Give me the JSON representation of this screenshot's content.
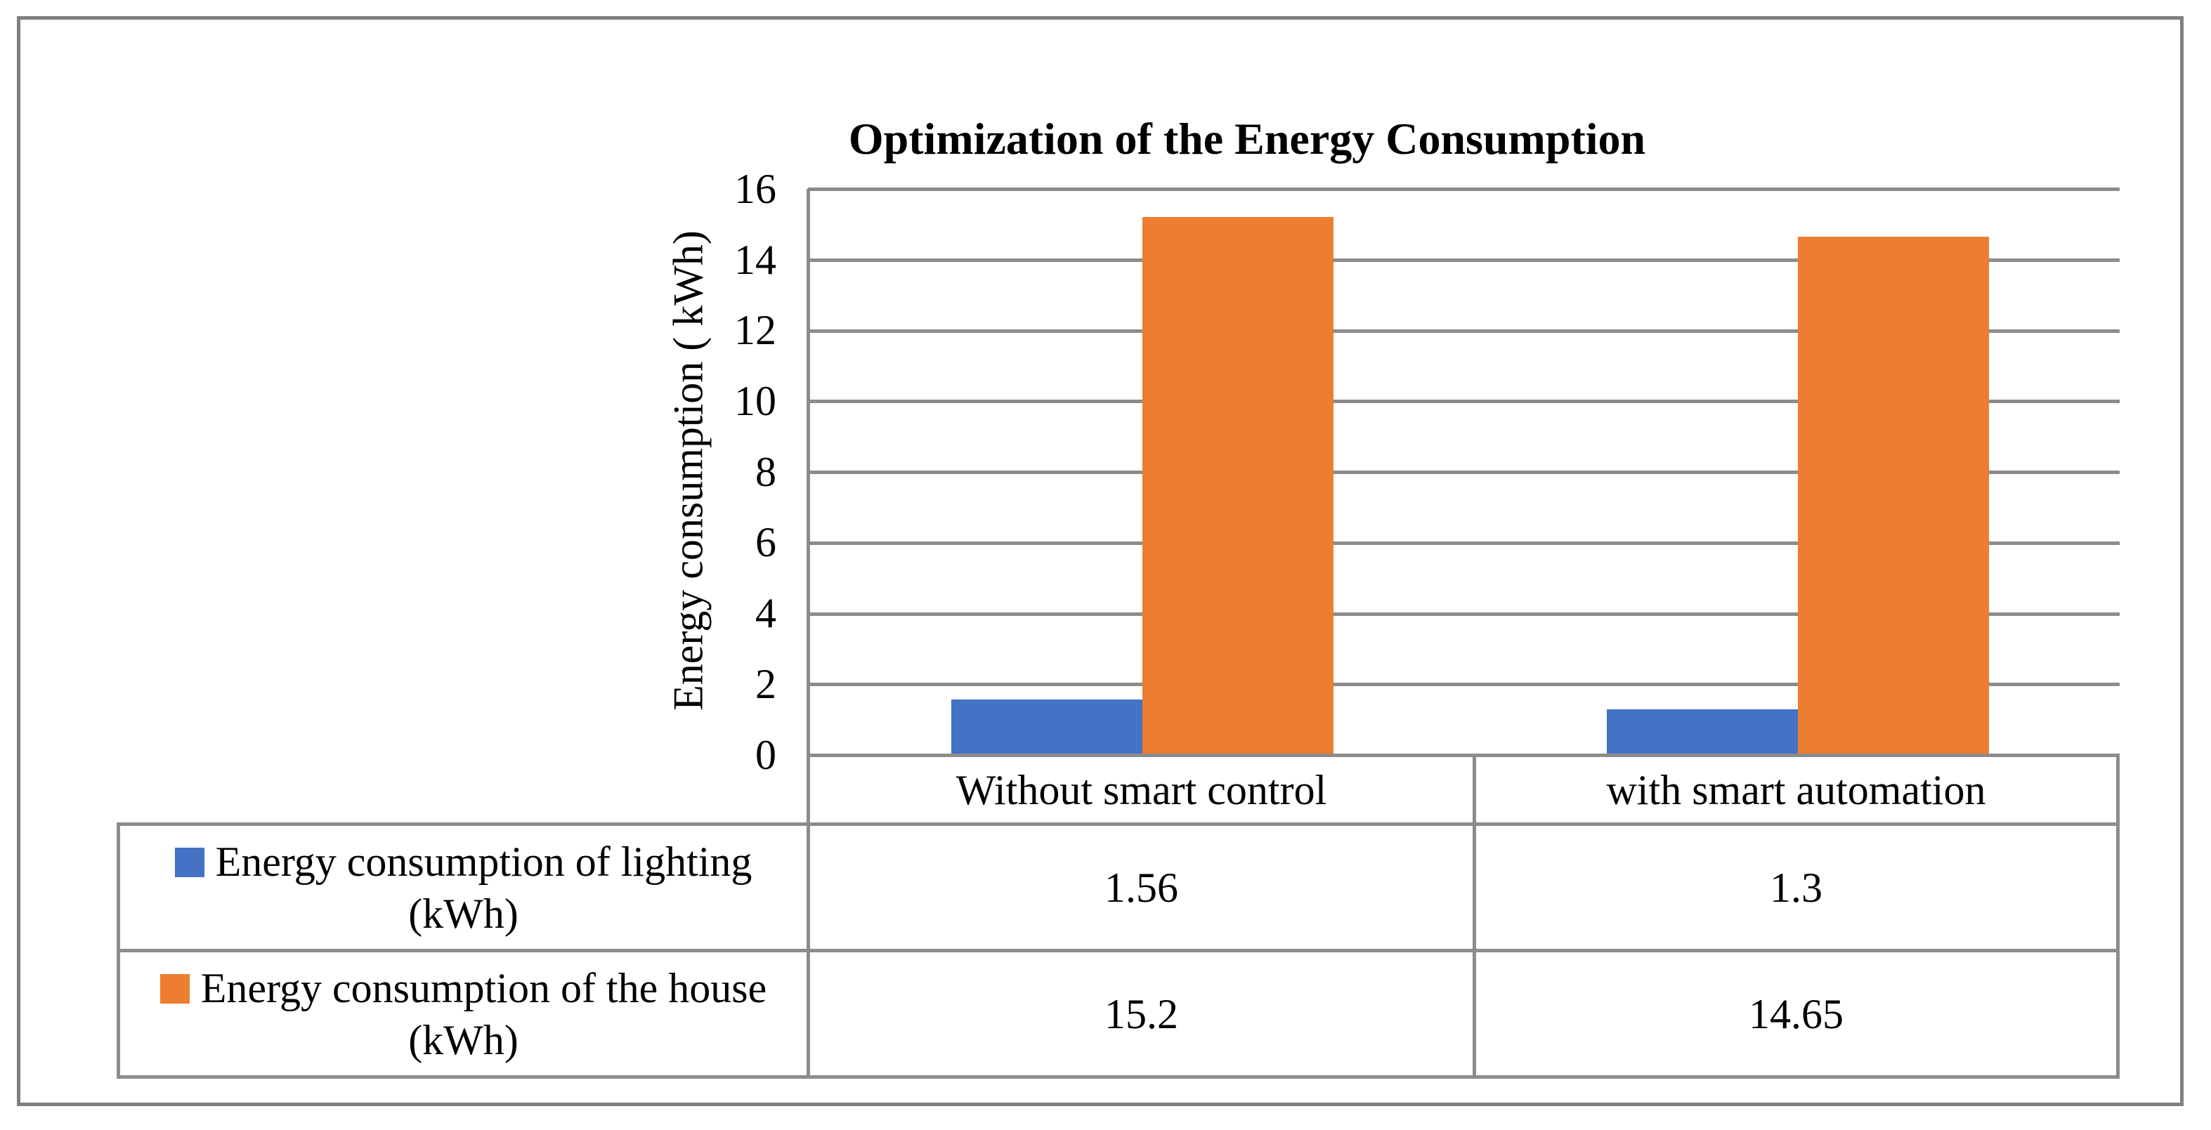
{
  "chart_data": {
    "type": "bar",
    "title": "Optimization of the Energy Consumption",
    "ylabel": "Energy consumption ( kWh)",
    "xlabel": "",
    "ylim": [
      0,
      16
    ],
    "ytick_step": 2,
    "yticks": [
      16,
      14,
      12,
      10,
      8,
      6,
      4,
      2,
      0
    ],
    "grid": true,
    "legend_position": "left-of-data-table",
    "data_table_shown": true,
    "categories": [
      "Without smart control",
      "with smart automation"
    ],
    "series": [
      {
        "name": "Energy consumption of lighting (kWh)",
        "label_line1": "Energy consumption of lighting",
        "label_line2": "(kWh)",
        "color": "#4472C4",
        "values": [
          1.56,
          1.3
        ],
        "values_text": [
          "1.56",
          "1.3"
        ]
      },
      {
        "name": "Energy consumption of the house (kWh)",
        "label_line1": "Energy consumption of the house",
        "label_line2": "(kWh)",
        "color": "#ED7D31",
        "values": [
          15.2,
          14.65
        ],
        "values_text": [
          "15.2",
          "14.65"
        ]
      }
    ],
    "colors": {
      "grid_line": "#8C8C8C",
      "figure_border": "#7F7F7F",
      "text": "#000000",
      "background": "#FFFFFF"
    }
  }
}
